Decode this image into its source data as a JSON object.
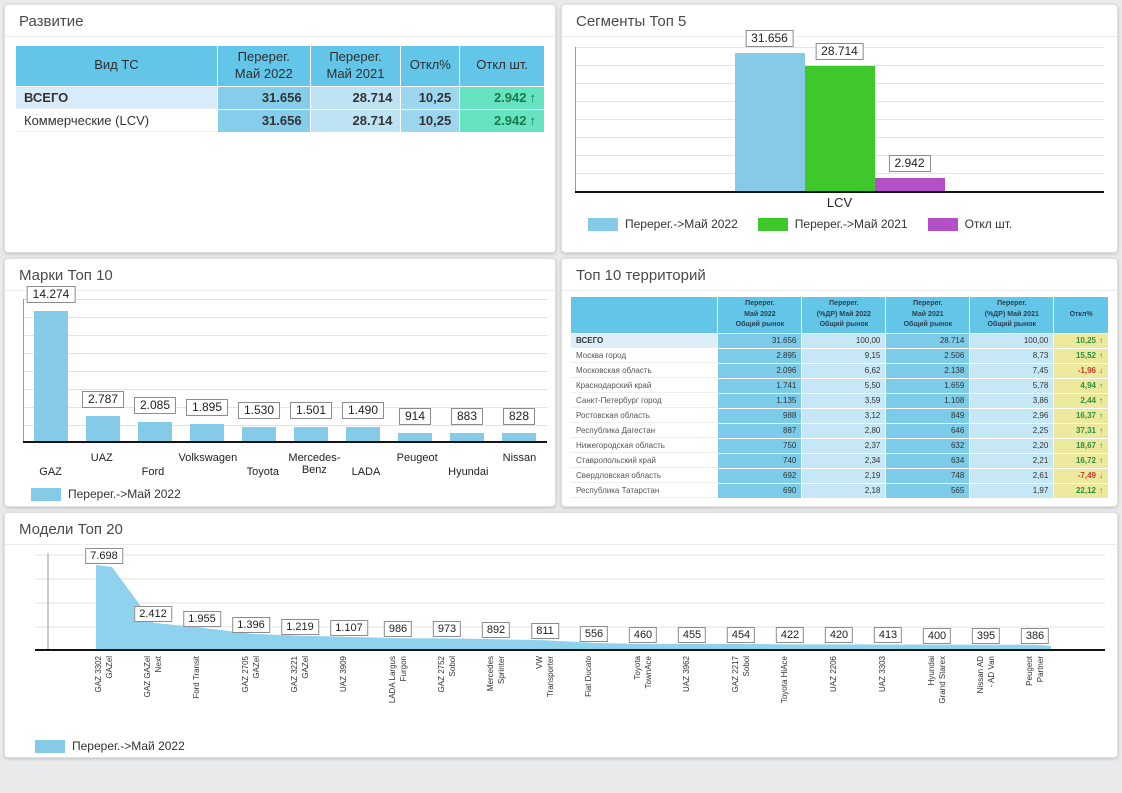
{
  "panels": {
    "development": {
      "title": "Развитие"
    },
    "segments": {
      "title": "Сегменты Топ 5"
    },
    "brands": {
      "title": "Марки Топ 10"
    },
    "territories": {
      "title": "Топ 10 территорий"
    },
    "models": {
      "title": "Модели Топ 20"
    }
  },
  "colors": {
    "bar_blue": "#85CBE8",
    "area_blue": "#8ED2ED",
    "bar_green": "#3FC82B",
    "bar_purple": "#B44FC8",
    "header_blue": "#63C6E8",
    "cell_blue_strong": "#7CCBE9",
    "cell_blue_light": "#C6E7F5",
    "cell_mint": "#66E3C0",
    "cell_yellow": "#ECE89C",
    "positive_green": "#2F8F3C",
    "negative_red": "#C3402F"
  },
  "chart_data": [
    {
      "id": "development_table",
      "type": "table",
      "title": "Развитие",
      "columns": [
        "Вид ТС",
        "Перерег.\nМай 2022",
        "Перерег.\nМай 2021",
        "Откл%",
        "Откл шт."
      ],
      "rows": [
        {
          "label": "ВСЕГО",
          "reg_may_2022": "31.656",
          "reg_may_2021": "28.714",
          "otkl_pct": "10,25",
          "otkl_sht": "2.942",
          "trend": "up",
          "total": true
        },
        {
          "label": "Коммерческие (LCV)",
          "reg_may_2022": "31.656",
          "reg_may_2021": "28.714",
          "otkl_pct": "10,25",
          "otkl_sht": "2.942",
          "trend": "up",
          "total": false
        }
      ]
    },
    {
      "id": "segments_top5",
      "type": "bar",
      "title": "Сегменты Топ 5",
      "categories": [
        "LCV"
      ],
      "series": [
        {
          "name": "Перерег.->Май 2022",
          "color": "#85CBE8",
          "values": [
            31656
          ],
          "labels": [
            "31.656"
          ]
        },
        {
          "name": "Перерег.->Май 2021",
          "color": "#3FC82B",
          "values": [
            28714
          ],
          "labels": [
            "28.714"
          ]
        },
        {
          "name": "Откл шт.",
          "color": "#B44FC8",
          "values": [
            2942
          ],
          "labels": [
            "2.942"
          ]
        }
      ],
      "grid": true,
      "legend_position": "bottom"
    },
    {
      "id": "brands_top10",
      "type": "bar",
      "title": "Марки Топ 10",
      "series_name": "Перерег.->Май 2022",
      "color": "#85CBE8",
      "categories": [
        "GAZ",
        "UAZ",
        "Ford",
        "Volkswagen",
        "Toyota",
        "Mercedes-Benz",
        "LADA",
        "Peugeot",
        "Hyundai",
        "Nissan"
      ],
      "values": [
        14274,
        2787,
        2085,
        1895,
        1530,
        1501,
        1490,
        914,
        883,
        828
      ],
      "labels": [
        "14.274",
        "2.787",
        "2.085",
        "1.895",
        "1.530",
        "1.501",
        "1.490",
        "914",
        "883",
        "828"
      ],
      "grid": true,
      "legend_position": "bottom"
    },
    {
      "id": "territories_top10",
      "type": "table",
      "title": "Топ 10 территорий",
      "columns": [
        "",
        "Перерег.\nМай 2022\nОбщий рынок",
        "Перерег.\n(%ДР) Май 2022\nОбщий рынок",
        "Перерег.\nМай 2021\nОбщий рынок",
        "Перерег.\n(%ДР) Май 2021\nОбщий рынок",
        "Откл%"
      ],
      "rows": [
        [
          "ВСЕГО",
          "31.656",
          "100,00",
          "28.714",
          "100,00",
          "10,25"
        ],
        [
          "Москва город",
          "2.895",
          "9,15",
          "2.506",
          "8,73",
          "15,52"
        ],
        [
          "Московская область",
          "2.096",
          "6,62",
          "2.138",
          "7,45",
          "-1,96"
        ],
        [
          "Краснодарский край",
          "1.741",
          "5,50",
          "1.659",
          "5,78",
          "4,94"
        ],
        [
          "Санкт-Петербург город",
          "1.135",
          "3,59",
          "1.108",
          "3,86",
          "2,44"
        ],
        [
          "Ростовская область",
          "988",
          "3,12",
          "849",
          "2,96",
          "16,37"
        ],
        [
          "Республика Дагестан",
          "887",
          "2,80",
          "646",
          "2,25",
          "37,31"
        ],
        [
          "Нижегородская область",
          "750",
          "2,37",
          "632",
          "2,20",
          "18,67"
        ],
        [
          "Ставропольский край",
          "740",
          "2,34",
          "634",
          "2,21",
          "16,72"
        ],
        [
          "Свердловская область",
          "692",
          "2,19",
          "748",
          "2,61",
          "-7,49"
        ],
        [
          "Республика Татарстан",
          "690",
          "2,18",
          "565",
          "1,97",
          "22,12"
        ]
      ]
    },
    {
      "id": "models_top20",
      "type": "area",
      "title": "Модели Топ 20",
      "series_name": "Перерег.->Май 2022",
      "color": "#8ED2ED",
      "categories": [
        "GAZ 3302 GAZel",
        "GAZ GAZel Next",
        "Ford Transit",
        "GAZ 2705 GAZel",
        "GAZ 3221 GAZel",
        "UAZ 3909",
        "LADA Largus Furgon",
        "GAZ 2752 Sobol",
        "Mercedes Sprinter",
        "VW Transporter",
        "Fiat Ducato",
        "Toyota TownAce",
        "UAZ 3962",
        "GAZ 2217 Sobol",
        "Toyota HiAce",
        "UAZ 2206",
        "UAZ 3303",
        "Hyundai Grand Starex",
        "Nissan AD - AD Van",
        "Peugeot Partner"
      ],
      "tick_labels": [
        "GAZ 3302\nGAZel",
        "GAZ GAZel\nNext",
        "Ford Transit",
        "GAZ 2705\nGAZel",
        "GAZ 3221\nGAZel",
        "UAZ 3909",
        "LADA Largus\nFurgon",
        "GAZ 2752\nSobol",
        "Mercedes\nSprinter",
        "VW\nTransporter",
        "Fiat Ducato",
        "Toyota\nTownAce",
        "UAZ 3962",
        "GAZ 2217\nSobol",
        "Toyota HiAce",
        "UAZ 2206",
        "UAZ 3303",
        "Hyundai\nGrand Starex",
        "Nissan AD\n- AD Van",
        "Peugeot\nPartner"
      ],
      "values": [
        7698,
        2412,
        1955,
        1396,
        1219,
        1107,
        986,
        973,
        892,
        811,
        556,
        460,
        455,
        454,
        422,
        420,
        413,
        400,
        395,
        386
      ],
      "labels": [
        "7.698",
        "2.412",
        "1.955",
        "1.396",
        "1.219",
        "1.107",
        "986",
        "973",
        "892",
        "811",
        "556",
        "460",
        "455",
        "454",
        "422",
        "420",
        "413",
        "400",
        "395",
        "386"
      ],
      "grid": true,
      "legend_position": "bottom"
    }
  ]
}
